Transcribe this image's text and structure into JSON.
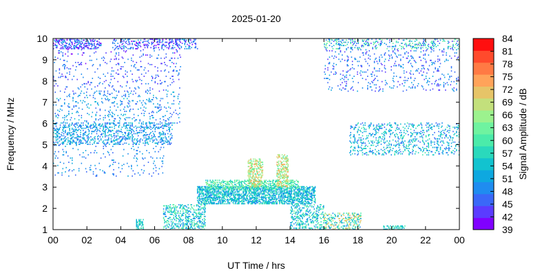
{
  "chart_data": {
    "type": "heatmap",
    "title": "2025-01-20",
    "xlabel": "UT Time / hrs",
    "ylabel": "Frequency / MHz",
    "colorbar_label": "Signal Amplitude / dB",
    "x_ticks": [
      "00",
      "02",
      "04",
      "06",
      "08",
      "10",
      "12",
      "14",
      "16",
      "18",
      "20",
      "22",
      "00"
    ],
    "xlim": [
      0,
      24
    ],
    "y_ticks": [
      "1",
      "2",
      "3",
      "4",
      "5",
      "6",
      "7",
      "8",
      "9",
      "10"
    ],
    "ylim": [
      1,
      10
    ],
    "colorbar_ticks": [
      "84",
      "81",
      "78",
      "75",
      "72",
      "69",
      "66",
      "63",
      "60",
      "57",
      "54",
      "51",
      "48",
      "45",
      "42",
      "39"
    ],
    "colorbar_range": [
      39,
      84
    ],
    "colorscale": [
      "#8000ff",
      "#5b3bff",
      "#3a68f8",
      "#1f8cf0",
      "#0ea8e0",
      "#12c3cf",
      "#2ad9bc",
      "#4bebaa",
      "#6ff3a0",
      "#9cf28e",
      "#c3e07c",
      "#e6c468",
      "#ffa35a",
      "#ff7a44",
      "#ff4a2c",
      "#ff0f0f"
    ],
    "grid": false,
    "legend": "colorbar-right",
    "regions": [
      {
        "t": [
          0.0,
          2.8
        ],
        "f": [
          9.5,
          10.0
        ],
        "amp": [
          39,
          52
        ],
        "density": 0.35
      },
      {
        "t": [
          3.5,
          8.5
        ],
        "f": [
          9.5,
          10.0
        ],
        "amp": [
          40,
          52
        ],
        "density": 0.25
      },
      {
        "t": [
          0.0,
          7.5
        ],
        "f": [
          8.8,
          9.5
        ],
        "amp": [
          40,
          50
        ],
        "density": 0.06
      },
      {
        "t": [
          0.0,
          7.5
        ],
        "f": [
          7.5,
          8.8
        ],
        "amp": [
          42,
          50
        ],
        "density": 0.06
      },
      {
        "t": [
          0.0,
          7.5
        ],
        "f": [
          6.0,
          7.5
        ],
        "amp": [
          45,
          54
        ],
        "density": 0.08
      },
      {
        "t": [
          0.0,
          7.0
        ],
        "f": [
          5.0,
          6.0
        ],
        "amp": [
          45,
          56
        ],
        "density": 0.25
      },
      {
        "t": [
          0.0,
          6.5
        ],
        "f": [
          3.5,
          5.0
        ],
        "amp": [
          45,
          52
        ],
        "density": 0.05
      },
      {
        "t": [
          16.0,
          24.0
        ],
        "f": [
          9.5,
          10.0
        ],
        "amp": [
          42,
          66
        ],
        "density": 0.2
      },
      {
        "t": [
          16.0,
          24.0
        ],
        "f": [
          7.5,
          9.5
        ],
        "amp": [
          42,
          52
        ],
        "density": 0.07
      },
      {
        "t": [
          17.5,
          24.0
        ],
        "f": [
          4.5,
          6.0
        ],
        "amp": [
          45,
          60
        ],
        "density": 0.18
      },
      {
        "t": [
          8.5,
          15.5
        ],
        "f": [
          2.2,
          3.0
        ],
        "amp": [
          48,
          60
        ],
        "density": 0.55
      },
      {
        "t": [
          9.0,
          14.5
        ],
        "f": [
          2.9,
          3.3
        ],
        "amp": [
          54,
          66
        ],
        "density": 0.4
      },
      {
        "t": [
          11.5,
          12.4
        ],
        "f": [
          3.0,
          4.3
        ],
        "amp": [
          60,
          75
        ],
        "density": 0.45
      },
      {
        "t": [
          13.2,
          13.9
        ],
        "f": [
          3.0,
          4.5
        ],
        "amp": [
          60,
          75
        ],
        "density": 0.45
      },
      {
        "t": [
          6.5,
          9.0
        ],
        "f": [
          1.0,
          2.2
        ],
        "amp": [
          48,
          63
        ],
        "density": 0.3
      },
      {
        "t": [
          14.0,
          16.0
        ],
        "f": [
          1.0,
          2.2
        ],
        "amp": [
          48,
          63
        ],
        "density": 0.3
      },
      {
        "t": [
          4.9,
          5.3
        ],
        "f": [
          1.0,
          1.5
        ],
        "amp": [
          50,
          60
        ],
        "density": 0.45
      },
      {
        "t": [
          16.0,
          18.2
        ],
        "f": [
          1.0,
          1.8
        ],
        "amp": [
          48,
          75
        ],
        "density": 0.3
      },
      {
        "t": [
          19.5,
          20.8
        ],
        "f": [
          1.0,
          1.2
        ],
        "amp": [
          52,
          60
        ],
        "density": 0.4
      }
    ]
  }
}
